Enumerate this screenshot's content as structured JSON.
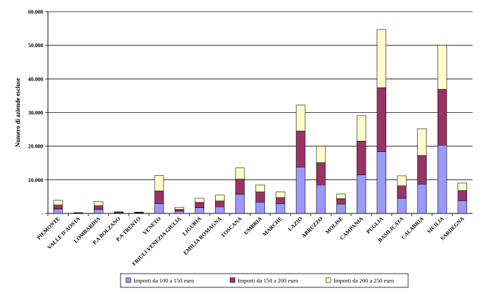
{
  "chart_data": {
    "type": "bar",
    "stacked": true,
    "title": "",
    "xlabel": "",
    "ylabel": "Numero di aziende escluse",
    "ylim": [
      0,
      60000
    ],
    "yticks": [
      0,
      10000,
      20000,
      30000,
      40000,
      50000,
      60000
    ],
    "ytick_labels": [
      "-",
      "10.000",
      "20.000",
      "30.000",
      "40.000",
      "50.000",
      "60.000"
    ],
    "grid": true,
    "legend_position": "bottom",
    "categories": [
      "PIEMONTE",
      "VALLE D'AOSTA",
      "LOMBARDIA",
      "P.A BOLZANO",
      "P.A TRENTO",
      "VENETO",
      "FRIULI VENEZIA GIULIA",
      "LIGURIA",
      "EMILIA ROMAGNA",
      "TOSCANA",
      "UMBRIA",
      "MARCHE",
      "LAZIO",
      "ABRUZZO",
      "MOLISE",
      "CAMPANIA",
      "PUGLIA",
      "BASILICATA",
      "CALABRIA",
      "SICILIA",
      "SARDEGNA"
    ],
    "series": [
      {
        "name": "Importi da  100 a 150 euro",
        "color": "#9999ff",
        "values": [
          1300,
          100,
          1200,
          150,
          120,
          2900,
          700,
          1700,
          2000,
          5700,
          3400,
          2900,
          13800,
          8500,
          2800,
          11500,
          18400,
          4500,
          8700,
          20300,
          3800
        ]
      },
      {
        "name": "Importi da 150 a 200 euro",
        "color": "#993366",
        "values": [
          1200,
          100,
          1100,
          150,
          130,
          3800,
          500,
          1600,
          1700,
          4500,
          3000,
          1800,
          10700,
          6600,
          1600,
          10000,
          19000,
          3700,
          8500,
          16600,
          3000
        ]
      },
      {
        "name": "Importi da 200 a 250 euro",
        "color": "#ffffcc",
        "values": [
          1400,
          50,
          1200,
          200,
          150,
          4600,
          600,
          1200,
          1800,
          3400,
          2100,
          1700,
          7700,
          4900,
          1400,
          7600,
          17300,
          3000,
          8000,
          13100,
          2300
        ]
      }
    ]
  }
}
